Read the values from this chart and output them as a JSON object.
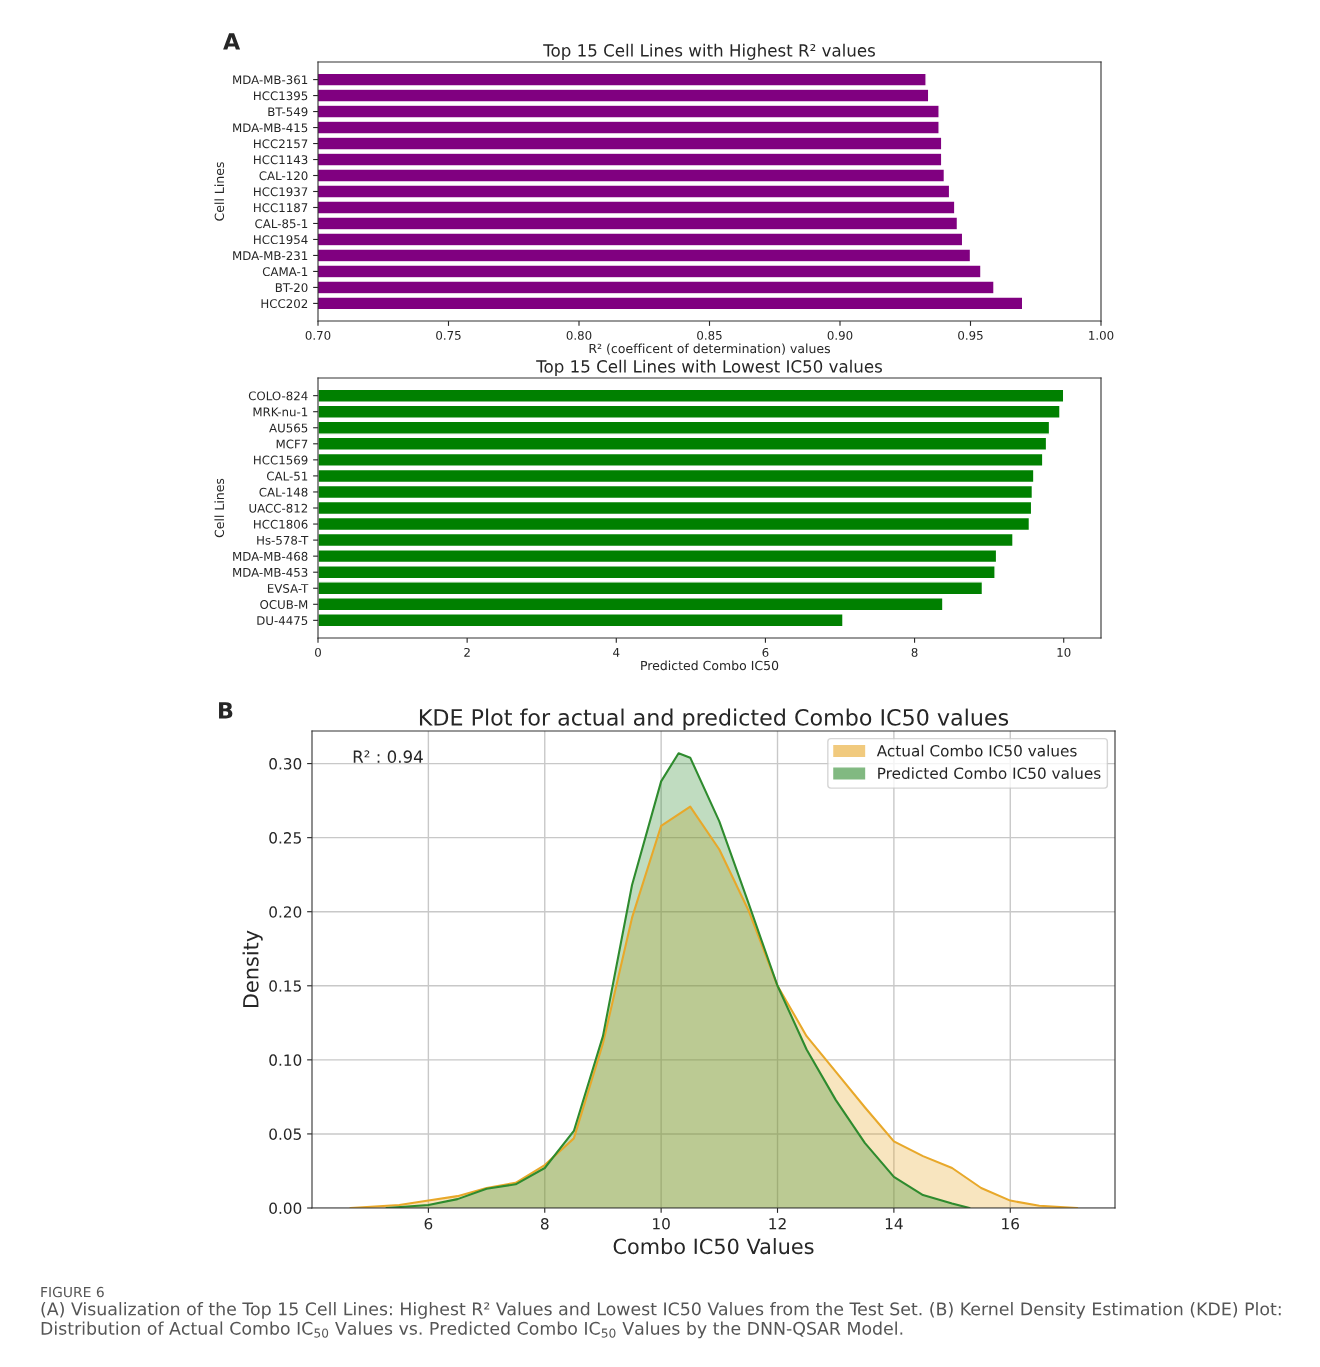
{
  "chart_data": [
    {
      "type": "bar",
      "orientation": "horizontal",
      "title": "Top 15 Cell Lines with Highest R² values",
      "xlabel": "R² (coefficent of determination) values",
      "ylabel": "Cell Lines",
      "categories": [
        "MDA-MB-361",
        "HCC1395",
        "BT-549",
        "MDA-MB-415",
        "HCC2157",
        "HCC1143",
        "CAL-120",
        "HCC1937",
        "HCC1187",
        "CAL-85-1",
        "HCC1954",
        "MDA-MB-231",
        "CAMA-1",
        "BT-20",
        "HCC202"
      ],
      "values": [
        0.933,
        0.934,
        0.938,
        0.938,
        0.939,
        0.939,
        0.94,
        0.942,
        0.944,
        0.945,
        0.947,
        0.95,
        0.954,
        0.959,
        0.97
      ],
      "color": "#800080",
      "xlim": [
        0.7,
        1.0
      ],
      "xticks": [
        {
          "value": 0.7,
          "label": "0.70"
        },
        {
          "value": 0.75,
          "label": "0.75"
        },
        {
          "value": 0.8,
          "label": "0.80"
        },
        {
          "value": 0.85,
          "label": "0.85"
        },
        {
          "value": 0.9,
          "label": "0.90"
        },
        {
          "value": 0.95,
          "label": "0.95"
        },
        {
          "value": 1.0,
          "label": "1.00"
        }
      ],
      "grid": false,
      "annotations": [
        "A"
      ]
    },
    {
      "type": "bar",
      "orientation": "horizontal",
      "title": "Top 15 Cell Lines with Lowest IC50 values",
      "xlabel": "Predicted Combo IC50",
      "ylabel": "Cell Lines",
      "categories": [
        "COLO-824",
        "MRK-nu-1",
        "AU565",
        "MCF7",
        "HCC1569",
        "CAL-51",
        "CAL-148",
        "UACC-812",
        "HCC1806",
        "Hs-578-T",
        "MDA-MB-468",
        "MDA-MB-453",
        "EVSA-T",
        "OCUB-M",
        "DU-4475"
      ],
      "values": [
        10.0,
        9.95,
        9.81,
        9.77,
        9.72,
        9.6,
        9.58,
        9.57,
        9.54,
        9.32,
        9.1,
        9.08,
        8.91,
        8.38,
        7.04
      ],
      "color": "#008000",
      "xlim": [
        0,
        10.5
      ],
      "xticks": [
        0,
        2,
        4,
        6,
        8,
        10
      ],
      "grid": false
    },
    {
      "type": "area",
      "title": "KDE Plot for actual and predicted Combo IC50 values",
      "xlabel": "Combo IC50 Values",
      "ylabel": "Density",
      "series": [
        {
          "name": "Actual Combo IC50 values",
          "color": "#e8a82a",
          "x": [
            4.66,
            5.5,
            6.0,
            6.5,
            7.0,
            7.5,
            8.0,
            8.5,
            9.0,
            9.5,
            10.0,
            10.5,
            11.0,
            11.5,
            12.0,
            12.5,
            13.0,
            13.5,
            14.0,
            14.5,
            15.0,
            15.5,
            16.0,
            16.5,
            17.15
          ],
          "values": [
            0,
            0.002,
            0.005,
            0.008,
            0.0135,
            0.017,
            0.029,
            0.047,
            0.111,
            0.196,
            0.258,
            0.271,
            0.242,
            0.201,
            0.15,
            0.116,
            0.092,
            0.068,
            0.045,
            0.035,
            0.027,
            0.0135,
            0.005,
            0.0015,
            0
          ]
        },
        {
          "name": "Predicted Combo IC50 values",
          "color": "#2e8b2e",
          "x": [
            5.28,
            6.0,
            6.5,
            7.0,
            7.5,
            8.0,
            8.5,
            9.0,
            9.5,
            10.0,
            10.3,
            10.5,
            11.0,
            11.5,
            12.0,
            12.5,
            13.0,
            13.5,
            14.0,
            14.5,
            15.0,
            15.3
          ],
          "values": [
            0,
            0.002,
            0.006,
            0.013,
            0.016,
            0.027,
            0.052,
            0.116,
            0.218,
            0.288,
            0.307,
            0.304,
            0.261,
            0.206,
            0.15,
            0.107,
            0.073,
            0.044,
            0.021,
            0.0087,
            0.003,
            0
          ]
        }
      ],
      "xlim": [
        4.0,
        17.8
      ],
      "ylim": [
        0,
        0.322
      ],
      "xticks": [
        6,
        8,
        10,
        12,
        14,
        16
      ],
      "yticks": [
        {
          "value": 0,
          "label": "0.00"
        },
        {
          "value": 0.05,
          "label": "0.05"
        },
        {
          "value": 0.1,
          "label": "0.10"
        },
        {
          "value": 0.15,
          "label": "0.15"
        },
        {
          "value": 0.2,
          "label": "0.20"
        },
        {
          "value": 0.25,
          "label": "0.25"
        },
        {
          "value": 0.3,
          "label": "0.30"
        }
      ],
      "grid": true,
      "legend": "top right",
      "annotations": [
        "B",
        "R² : 0.94",
        "FIGURE 6",
        "(A) Visualization of the Top 15 Cell Lines: Highest R² Values and Lowest IC50 Values from the Test Set. (B) Kernel Density Estimation (KDE) Plot: Distribution of Actual Combo IC$_{50}$ Values vs. Predicted Combo IC$_{50}$ Values by the DNN-QSAR Model."
      ]
    }
  ]
}
